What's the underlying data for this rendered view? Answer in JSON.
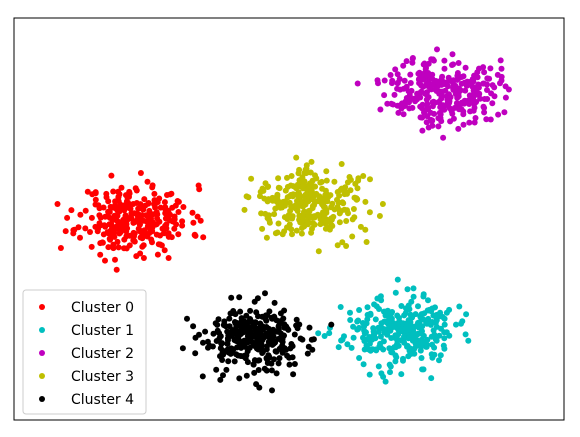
{
  "chart_data": {
    "type": "scatter",
    "title": "",
    "xlabel": "",
    "ylabel": "",
    "grid": false,
    "axes_ticks_visible": false,
    "legend_position": "lower-left",
    "xlim": [
      0,
      100
    ],
    "ylim": [
      0,
      100
    ],
    "series": [
      {
        "name": "Cluster 0",
        "color": "#ff0000",
        "cx": 22,
        "cy": 50,
        "sx": 5.0,
        "sy": 4.2,
        "n": 300,
        "seed": 11
      },
      {
        "name": "Cluster 1",
        "color": "#00bfbf",
        "cx": 70,
        "cy": 22,
        "sx": 5.0,
        "sy": 4.2,
        "n": 300,
        "seed": 23
      },
      {
        "name": "Cluster 2",
        "color": "#bf00bf",
        "cx": 78,
        "cy": 82,
        "sx": 5.0,
        "sy": 4.2,
        "n": 300,
        "seed": 37
      },
      {
        "name": "Cluster 3",
        "color": "#bfbf00",
        "cx": 54,
        "cy": 54,
        "sx": 5.0,
        "sy": 4.2,
        "n": 300,
        "seed": 41
      },
      {
        "name": "Cluster 4",
        "color": "#000000",
        "cx": 44,
        "cy": 20,
        "sx": 5.0,
        "sy": 4.2,
        "n": 300,
        "seed": 53
      }
    ]
  }
}
